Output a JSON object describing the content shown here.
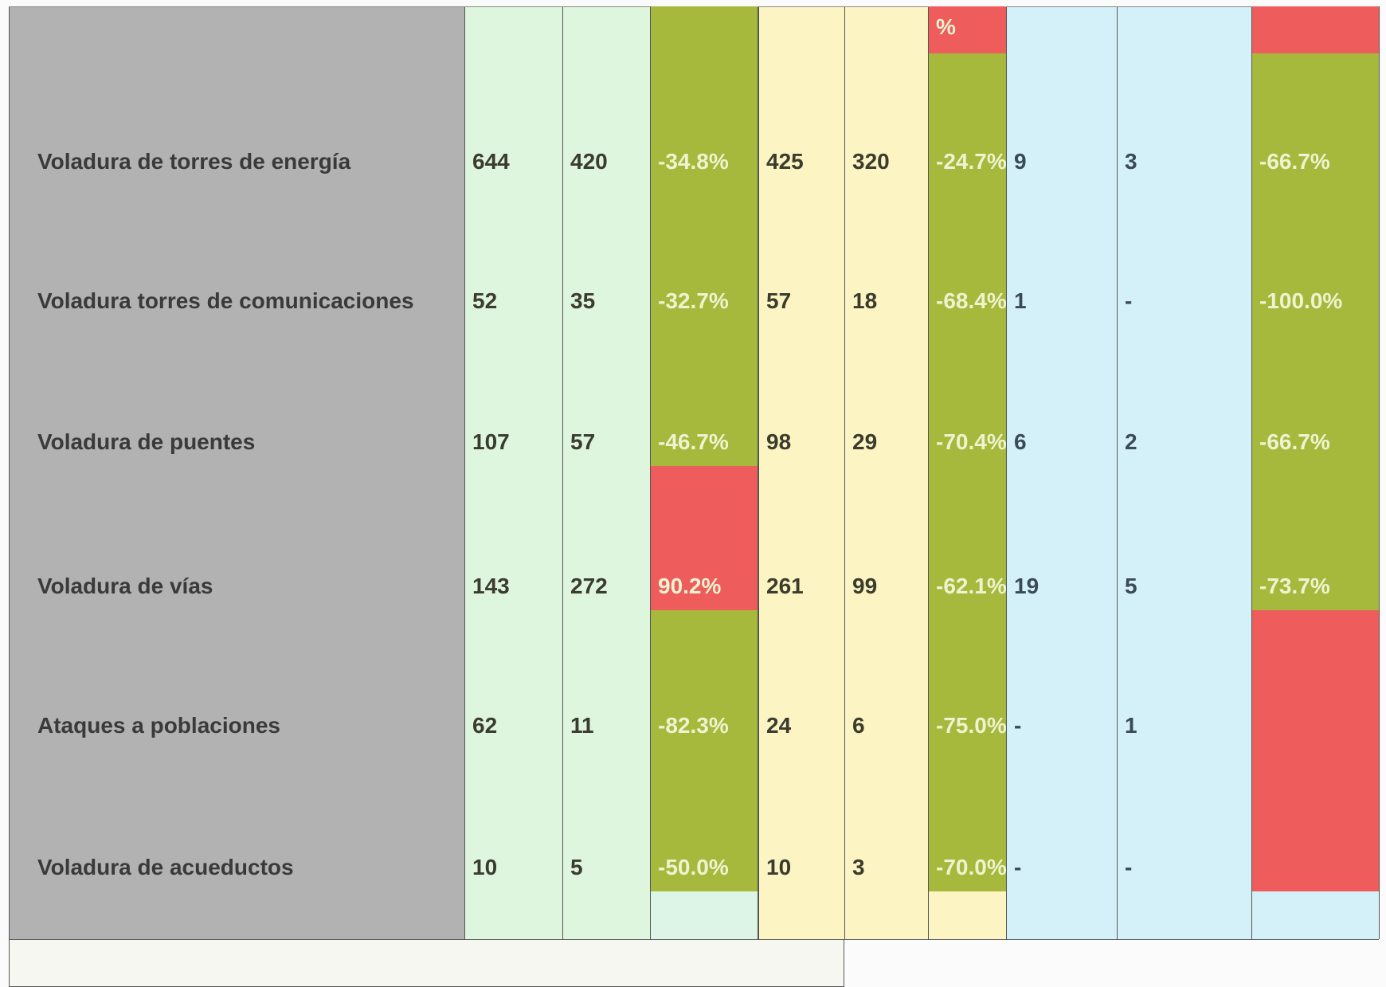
{
  "table": {
    "top_row_text": "%",
    "rows": [
      [
        "Voladura de torres de energía",
        "644",
        "420",
        "-34.8%",
        "425",
        "320",
        "-24.7%",
        "9",
        "3",
        "-66.7%"
      ],
      [
        "Voladura torres de comunicaciones",
        "52",
        "35",
        "-32.7%",
        "57",
        "18",
        "-68.4%",
        "1",
        "-",
        "-100.0%"
      ],
      [
        "Voladura de puentes",
        "107",
        "57",
        "-46.7%",
        "98",
        "29",
        "-70.4%",
        "6",
        "2",
        "-66.7%"
      ],
      [
        "Voladura de vías",
        "143",
        "272",
        "90.2%",
        "261",
        "99",
        "-62.1%",
        "19",
        "5",
        "-73.7%"
      ],
      [
        "Ataques a poblaciones",
        "62",
        "11",
        "-82.3%",
        "24",
        "6",
        "-75.0%",
        "-",
        "1",
        null
      ],
      [
        "Voladura de acueductos",
        "10",
        "5",
        "-50.0%",
        "10",
        "3",
        "-70.0%",
        "-",
        "-",
        null
      ]
    ],
    "cell_colors": [
      [
        "#a6b93c",
        "#ee5c5c",
        "#ee5c5c"
      ],
      [
        "#a6b93c",
        "#a6b93c",
        "#a6b93c"
      ],
      [
        "#a6b93c",
        "#a6b93c",
        "#a6b93c"
      ],
      [
        "#a6b93c",
        "#a6b93c",
        "#a6b93c"
      ],
      [
        "#ee5c5c",
        "#a6b93c",
        "#a6b93c"
      ],
      [
        "#a6b93c",
        "#a6b93c",
        "#ee5c5c"
      ],
      [
        "#a6b93c",
        "#a6b93c",
        "#ee5c5c"
      ]
    ]
  }
}
